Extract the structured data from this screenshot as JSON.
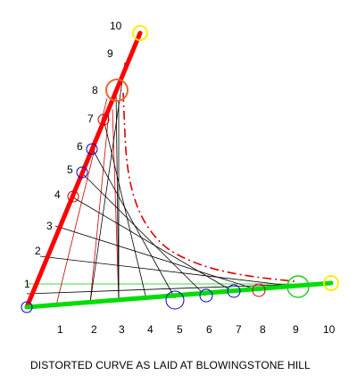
{
  "caption": "DISTORTED CURVE  AS LAID AT BLOWINGSTONE HILL",
  "left_arm_labels": [
    "1",
    "2",
    "3",
    "4",
    "5",
    "6",
    "7",
    "8",
    "9",
    "10"
  ],
  "bottom_arm_labels": [
    "1",
    "2",
    "3",
    "4",
    "5",
    "6",
    "7",
    "8",
    "9",
    "10"
  ],
  "colors": {
    "left_arm": "#ff0000",
    "bottom_arm": "#00dd00",
    "red_lines": "#cc0000",
    "black_lines": "#000000",
    "dashdot_curve": "#dd0000",
    "end_circles": "#ffee00",
    "blue_circles": "#0000cc"
  }
}
